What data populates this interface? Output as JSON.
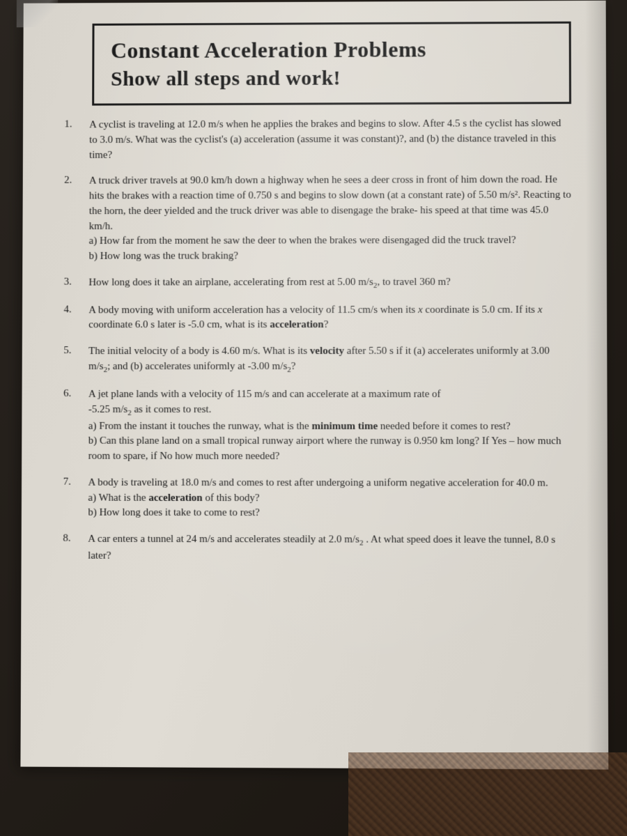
{
  "title": {
    "line1": "Constant Acceleration Problems",
    "line2": "Show all steps and work!"
  },
  "problems": [
    {
      "num": "1.",
      "text": "A cyclist is traveling at 12.0 m/s when he applies the brakes and begins to slow. After 4.5 s the cyclist has slowed to 3.0 m/s. What was the cyclist's (a) acceleration (assume it was constant)?, and (b) the distance traveled in this time?"
    },
    {
      "num": "2.",
      "text": "A truck driver travels at 90.0 km/h down a highway when he sees a deer cross in front of him down the road. He hits the brakes with a reaction time of 0.750 s and begins to slow down (at a constant rate) of 5.50 m/s². Reacting to the horn, the deer yielded and the truck driver was able to disengage the brake- his speed at that time was 45.0 km/h.",
      "sub_a": "a) How far from the moment he saw the deer to when the brakes were disengaged did the truck travel?",
      "sub_b": "b) How long was the truck braking?"
    },
    {
      "num": "3.",
      "text_pre": "How long does it take an airplane, accelerating from rest at 5.00 m/s",
      "text_post": ", to travel 360 m?"
    },
    {
      "num": "4.",
      "text_pre": "A body moving with uniform acceleration has a velocity of 11.5 cm/s when its ",
      "italic1": "x",
      "text_mid": " coordinate is 5.0 cm. If its ",
      "italic2": "x",
      "text_post": " coordinate 6.0 s later is -5.0 cm, what is its ",
      "bold1": "acceleration",
      "text_end": "?"
    },
    {
      "num": "5.",
      "text_pre": "The initial velocity of a body is 4.60 m/s. What is its ",
      "bold1": "velocity",
      "text_mid": " after 5.50 s if it (a) accelerates uniformly at 3.00 m/s",
      "text_mid2": "; and (b) accelerates uniformly at -3.00 m/s",
      "text_end": "?"
    },
    {
      "num": "6.",
      "text_pre": "A jet plane lands with a velocity of 115 m/s and can accelerate at a maximum rate of",
      "text_line2_pre": "-5.25 m/s",
      "text_line2_post": " as it comes to rest.",
      "sub_a_pre": "a) From the instant it touches the runway, what is the ",
      "sub_a_bold": "minimum time",
      "sub_a_post": " needed before it comes to rest?",
      "sub_b": "b) Can this plane land on a small tropical runway airport where the runway is 0.950 km long? If Yes – how much room to spare, if No how much more needed?"
    },
    {
      "num": "7.",
      "text": "A body is traveling at 18.0 m/s and comes to rest after undergoing a uniform negative acceleration for 40.0 m.",
      "sub_a_pre": "a) What is the ",
      "sub_a_bold": "acceleration",
      "sub_a_post": " of this body?",
      "sub_b": "b) How long does it take to come to rest?"
    },
    {
      "num": "8.",
      "text_pre": "A car enters a tunnel at 24 m/s and accelerates steadily at 2.0 m/s",
      "text_post": " . At what speed does it leave the tunnel, 8.0 s later?"
    }
  ],
  "sub2": "2",
  "styling": {
    "paper_bg": "#dcd8d0",
    "text_color": "#1a1a1a",
    "border_color": "#1a1a1a",
    "title_fontsize": 32,
    "body_fontsize": 15,
    "font_family": "Georgia, Times New Roman, serif"
  }
}
